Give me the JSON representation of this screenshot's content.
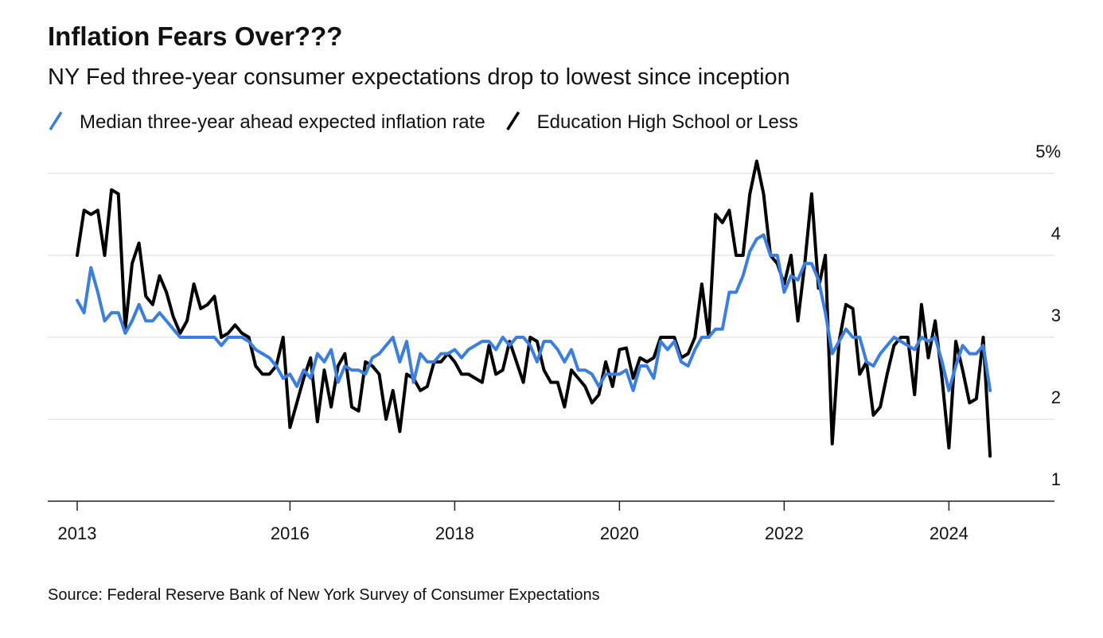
{
  "chart_data": {
    "type": "line",
    "title": "Inflation Fears Over???",
    "subtitle": "NY Fed three-year consumer expectations drop to lowest since inception",
    "source": "Source: Federal Reserve Bank of New York Survey of Consumer Expectations",
    "categories": [
      "2013",
      null,
      null,
      null,
      null,
      null,
      null,
      null,
      null,
      null,
      null,
      null,
      null,
      null,
      null,
      null,
      null,
      null,
      null,
      null,
      null,
      null,
      null,
      null,
      null,
      null,
      null,
      null,
      null,
      null,
      null,
      "2016",
      null,
      null,
      null,
      null,
      null,
      null,
      null,
      null,
      null,
      null,
      null,
      null,
      null,
      null,
      null,
      null,
      null,
      null,
      null,
      null,
      null,
      null,
      null,
      "2018",
      null,
      null,
      null,
      null,
      null,
      null,
      null,
      null,
      null,
      null,
      null,
      null,
      null,
      null,
      null,
      null,
      null,
      null,
      null,
      null,
      null,
      null,
      null,
      "2020",
      null,
      null,
      null,
      null,
      null,
      null,
      null,
      null,
      null,
      null,
      null,
      null,
      null,
      null,
      null,
      null,
      null,
      null,
      null,
      null,
      null,
      null,
      null,
      "2022",
      null,
      null,
      null,
      null,
      null,
      null,
      null,
      null,
      null,
      null,
      null,
      null,
      null,
      null,
      null,
      null,
      null,
      null,
      null,
      null,
      null,
      null,
      null,
      "2024",
      null,
      null,
      null,
      null,
      null,
      null
    ],
    "series": [
      {
        "name": "Median three-year ahead expected inflation rate",
        "color": "#3a7fe0",
        "values": [
          3.45,
          3.3,
          3.85,
          3.55,
          3.2,
          3.3,
          3.3,
          3.05,
          3.2,
          3.4,
          3.2,
          3.2,
          3.3,
          3.2,
          3.1,
          3.0,
          3.0,
          3.0,
          3.0,
          3.0,
          3.0,
          2.9,
          3.0,
          3.0,
          3.0,
          2.95,
          2.85,
          2.8,
          2.75,
          2.65,
          2.5,
          2.55,
          2.4,
          2.6,
          2.5,
          2.8,
          2.7,
          2.85,
          2.45,
          2.65,
          2.6,
          2.6,
          2.55,
          2.75,
          2.8,
          2.9,
          3.0,
          2.7,
          2.95,
          2.45,
          2.8,
          2.7,
          2.7,
          2.8,
          2.8,
          2.85,
          2.75,
          2.85,
          2.9,
          2.95,
          2.95,
          2.85,
          3.0,
          2.9,
          3.0,
          3.0,
          2.9,
          2.7,
          2.95,
          2.95,
          2.85,
          2.7,
          2.85,
          2.6,
          2.6,
          2.55,
          2.4,
          2.55,
          2.55,
          2.55,
          2.6,
          2.35,
          2.65,
          2.65,
          2.5,
          2.95,
          2.85,
          2.95,
          2.7,
          2.65,
          2.85,
          3.0,
          3.0,
          3.1,
          3.1,
          3.55,
          3.55,
          3.75,
          4.05,
          4.2,
          4.25,
          4.0,
          4.0,
          3.55,
          3.75,
          3.7,
          3.9,
          3.9,
          3.7,
          3.3,
          2.8,
          2.95,
          3.1,
          3.0,
          3.0,
          2.7,
          2.65,
          2.8,
          2.9,
          3.0,
          2.95,
          2.9,
          2.85,
          3.0,
          2.95,
          3.0,
          2.7,
          2.35,
          2.65,
          2.9,
          2.8,
          2.8,
          2.9,
          2.35
        ]
      },
      {
        "name": "Education High School or Less",
        "color": "#000000",
        "values": [
          4.0,
          4.55,
          4.5,
          4.55,
          4.0,
          4.8,
          4.75,
          3.1,
          3.9,
          4.15,
          3.5,
          3.4,
          3.75,
          3.55,
          3.25,
          3.05,
          3.2,
          3.65,
          3.35,
          3.4,
          3.5,
          3.0,
          3.05,
          3.15,
          3.05,
          3.0,
          2.65,
          2.55,
          2.55,
          2.65,
          3.0,
          1.9,
          2.2,
          2.5,
          2.75,
          1.97,
          2.6,
          2.15,
          2.65,
          2.8,
          2.15,
          2.1,
          2.7,
          2.65,
          2.55,
          2.0,
          2.35,
          1.85,
          2.55,
          2.5,
          2.35,
          2.4,
          2.7,
          2.7,
          2.8,
          2.7,
          2.55,
          2.55,
          2.5,
          2.45,
          2.9,
          2.55,
          2.6,
          2.95,
          2.7,
          2.45,
          3.0,
          2.95,
          2.6,
          2.45,
          2.45,
          2.15,
          2.6,
          2.5,
          2.4,
          2.2,
          2.3,
          2.7,
          2.4,
          2.85,
          2.87,
          2.5,
          2.75,
          2.7,
          2.75,
          3.0,
          3.0,
          3.0,
          2.75,
          2.8,
          3.0,
          3.65,
          3.0,
          4.5,
          4.4,
          4.55,
          4.0,
          4.0,
          4.75,
          5.15,
          4.75,
          4.0,
          3.9,
          3.65,
          4.0,
          3.2,
          3.9,
          4.75,
          3.6,
          4.0,
          1.7,
          2.95,
          3.4,
          3.35,
          2.55,
          2.7,
          2.05,
          2.15,
          2.55,
          2.9,
          3.0,
          3.0,
          2.3,
          3.4,
          2.75,
          3.2,
          2.5,
          1.65,
          2.95,
          2.6,
          2.2,
          2.25,
          3.0,
          1.55
        ]
      }
    ],
    "ylim": [
      1,
      5
    ],
    "yticks": [
      1,
      2,
      3,
      4,
      {
        "value": 5,
        "label": "5%"
      }
    ],
    "grid": true
  }
}
